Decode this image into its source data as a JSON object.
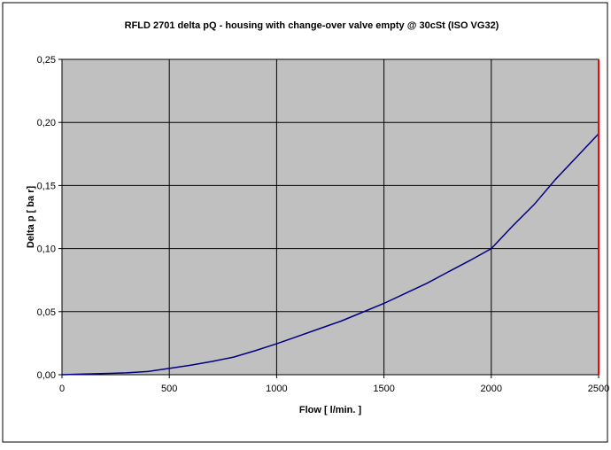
{
  "chart_data": {
    "type": "line",
    "title": "RFLD 2701 delta pQ - housing with change-over valve empty @ 30cSt (ISO VG32)",
    "xlabel": "Flow  [ l/min. ]",
    "ylabel": "Delta p  [ ba r]",
    "xlim": [
      0,
      2500
    ],
    "ylim": [
      0,
      0.25
    ],
    "x_ticks": [
      0,
      500,
      1000,
      1500,
      2000,
      2500
    ],
    "x_tick_labels": [
      "0",
      "500",
      "1000",
      "1500",
      "2000",
      "2500"
    ],
    "y_ticks": [
      0,
      0.05,
      0.1,
      0.15,
      0.2,
      0.25
    ],
    "y_tick_labels": [
      "0,00",
      "0,05",
      "0,10",
      "0,15",
      "0,20",
      "0,25"
    ],
    "grid": true,
    "legend": "none",
    "plot_background": "#c0c0c0",
    "series": [
      {
        "color": "#000080",
        "x": [
          0,
          100,
          200,
          300,
          400,
          500,
          600,
          700,
          800,
          900,
          1000,
          1100,
          1200,
          1300,
          1400,
          1500,
          1600,
          1700,
          1800,
          1900,
          2000,
          2100,
          2200,
          2300,
          2400,
          2500
        ],
        "y": [
          0,
          0.0005,
          0.001,
          0.0015,
          0.0025,
          0.005,
          0.0075,
          0.0105,
          0.014,
          0.019,
          0.0245,
          0.0305,
          0.0365,
          0.0425,
          0.0495,
          0.0565,
          0.0645,
          0.0725,
          0.0815,
          0.0905,
          0.1,
          0.118,
          0.135,
          0.155,
          0.173,
          0.191
        ]
      }
    ],
    "marker_line": {
      "x": 2500,
      "color": "#ff0000"
    }
  }
}
